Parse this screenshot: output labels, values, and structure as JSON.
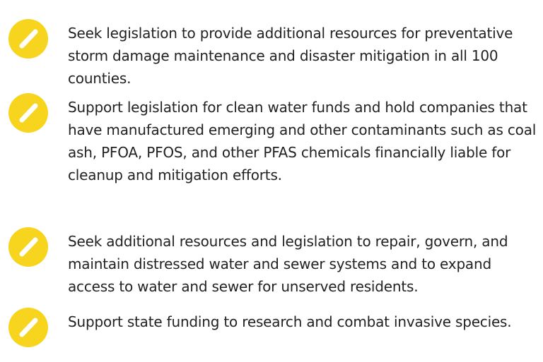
{
  "items": [
    "Seek legislation to provide additional resources for preventative storm damage maintenance and disaster mitigation in all 100 counties.",
    "Support legislation for clean water funds and hold companies that have manufactured emerging and other contaminants such as coal ash, PFOA, PFOS, and other PFAS chemicals financially liable for cleanup and mitigation efforts.",
    "Seek additional resources and legislation to repair, govern, and maintain distressed water and sewer systems and to expand access to water and sewer for unserved residents.",
    "Support state funding to research and combat invasive species."
  ]
}
